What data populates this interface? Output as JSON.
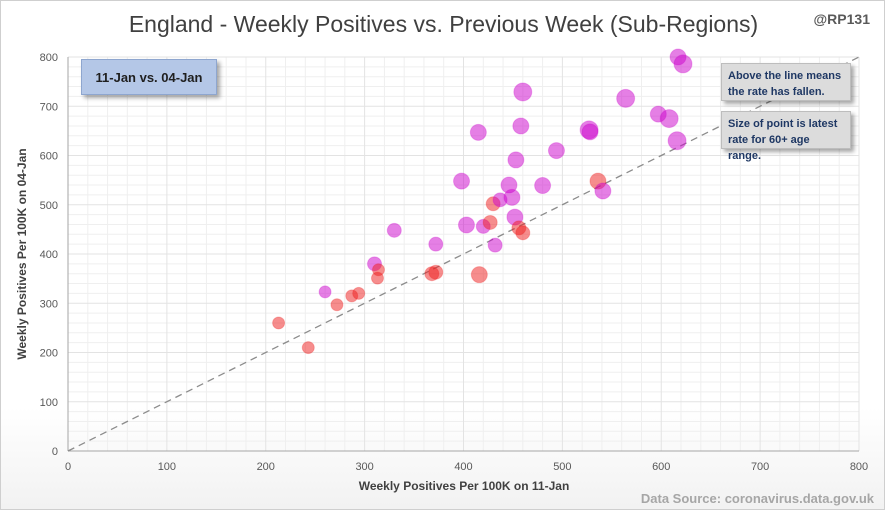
{
  "header": {
    "title": "England - Weekly Positives vs. Previous Week (Sub-Regions)",
    "credit": "@RP131"
  },
  "annotations": {
    "period": "11-Jan vs. 04-Jan",
    "note_line": "Above the line means the rate has fallen.",
    "note_size": "Size of point is latest rate for 60+ age range."
  },
  "footer": {
    "source": "Data Source: coronavirus.data.gov.uk"
  },
  "colors": {
    "purple": "#cc00cc",
    "red": "#ee1c1c",
    "grid": "#e3e3e3",
    "diagonal": "#8c8c8c"
  },
  "chart_data": {
    "type": "scatter",
    "title": "England - Weekly Positives vs. Previous Week (Sub-Regions)",
    "xlabel": "Weekly Positives Per 100K on 11-Jan",
    "ylabel": "Weekly Positives Per 100K on 04-Jan",
    "xlim": [
      0,
      800
    ],
    "ylim": [
      0,
      800
    ],
    "xticks": [
      0,
      100,
      200,
      300,
      400,
      500,
      600,
      700,
      800
    ],
    "yticks": [
      0,
      100,
      200,
      300,
      400,
      500,
      600,
      700,
      800
    ],
    "reference_line": "y = x",
    "grid": true,
    "points": [
      {
        "x": 213,
        "y": 260,
        "size": 6,
        "color": "red"
      },
      {
        "x": 243,
        "y": 210,
        "size": 6,
        "color": "red"
      },
      {
        "x": 260,
        "y": 323,
        "size": 6,
        "color": "purple"
      },
      {
        "x": 272,
        "y": 297,
        "size": 6,
        "color": "red"
      },
      {
        "x": 287,
        "y": 315,
        "size": 6,
        "color": "red"
      },
      {
        "x": 294,
        "y": 320,
        "size": 6,
        "color": "red"
      },
      {
        "x": 310,
        "y": 380,
        "size": 7,
        "color": "purple"
      },
      {
        "x": 314,
        "y": 368,
        "size": 6,
        "color": "red"
      },
      {
        "x": 313,
        "y": 351,
        "size": 6,
        "color": "red"
      },
      {
        "x": 330,
        "y": 448,
        "size": 7,
        "color": "purple"
      },
      {
        "x": 368,
        "y": 360,
        "size": 7,
        "color": "red"
      },
      {
        "x": 372,
        "y": 363,
        "size": 7,
        "color": "red"
      },
      {
        "x": 372,
        "y": 420,
        "size": 7,
        "color": "purple"
      },
      {
        "x": 398,
        "y": 548,
        "size": 8,
        "color": "purple"
      },
      {
        "x": 403,
        "y": 459,
        "size": 8,
        "color": "purple"
      },
      {
        "x": 415,
        "y": 647,
        "size": 8,
        "color": "purple"
      },
      {
        "x": 416,
        "y": 358,
        "size": 8,
        "color": "red"
      },
      {
        "x": 420,
        "y": 456,
        "size": 7,
        "color": "purple"
      },
      {
        "x": 427,
        "y": 464,
        "size": 7,
        "color": "red"
      },
      {
        "x": 430,
        "y": 502,
        "size": 7,
        "color": "red"
      },
      {
        "x": 432,
        "y": 418,
        "size": 7,
        "color": "purple"
      },
      {
        "x": 437,
        "y": 510,
        "size": 7,
        "color": "purple"
      },
      {
        "x": 446,
        "y": 540,
        "size": 8,
        "color": "purple"
      },
      {
        "x": 449,
        "y": 515,
        "size": 8,
        "color": "purple"
      },
      {
        "x": 453,
        "y": 591,
        "size": 8,
        "color": "purple"
      },
      {
        "x": 452,
        "y": 475,
        "size": 8,
        "color": "purple"
      },
      {
        "x": 456,
        "y": 453,
        "size": 7,
        "color": "red"
      },
      {
        "x": 460,
        "y": 443,
        "size": 7,
        "color": "red"
      },
      {
        "x": 458,
        "y": 660,
        "size": 8,
        "color": "purple"
      },
      {
        "x": 460,
        "y": 729,
        "size": 9,
        "color": "purple"
      },
      {
        "x": 480,
        "y": 539,
        "size": 8,
        "color": "purple"
      },
      {
        "x": 494,
        "y": 610,
        "size": 8,
        "color": "purple"
      },
      {
        "x": 527,
        "y": 652,
        "size": 9,
        "color": "purple"
      },
      {
        "x": 528,
        "y": 648,
        "size": 8,
        "color": "purple"
      },
      {
        "x": 536,
        "y": 548,
        "size": 8,
        "color": "red"
      },
      {
        "x": 541,
        "y": 528,
        "size": 8,
        "color": "purple"
      },
      {
        "x": 564,
        "y": 716,
        "size": 9,
        "color": "purple"
      },
      {
        "x": 597,
        "y": 684,
        "size": 8,
        "color": "purple"
      },
      {
        "x": 608,
        "y": 675,
        "size": 9,
        "color": "purple"
      },
      {
        "x": 616,
        "y": 630,
        "size": 9,
        "color": "purple"
      },
      {
        "x": 617,
        "y": 800,
        "size": 8,
        "color": "purple"
      },
      {
        "x": 622,
        "y": 786,
        "size": 9,
        "color": "purple"
      }
    ]
  }
}
